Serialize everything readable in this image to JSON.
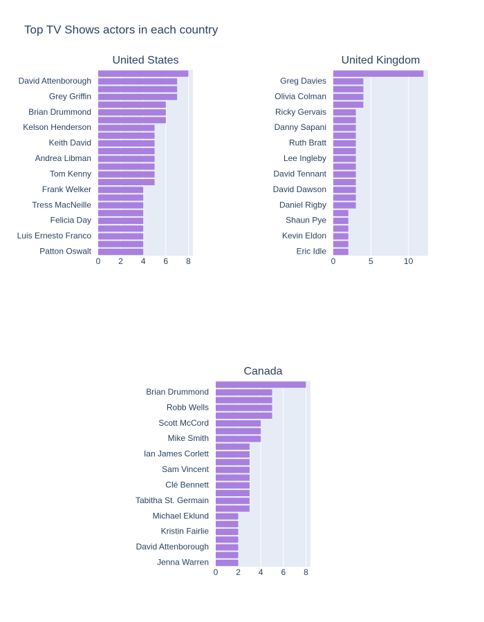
{
  "title": "Top TV Shows actors in each country",
  "chart_data": [
    {
      "type": "bar",
      "orientation": "h",
      "title": "United States",
      "color": "#a97fdf",
      "categories": [
        null,
        "David Attenborough",
        null,
        "Grey Griffin",
        null,
        "Brian Drummond",
        null,
        "Kelson Henderson",
        null,
        "Keith David",
        null,
        "Andrea Libman",
        null,
        "Tom Kenny",
        null,
        "Frank Welker",
        null,
        "Tress MacNeille",
        null,
        "Felicia Day",
        null,
        "Luis Ernesto Franco",
        null,
        "Patton Oswalt"
      ],
      "values": [
        8,
        7,
        7,
        7,
        6,
        6,
        6,
        5,
        5,
        5,
        5,
        5,
        5,
        5,
        5,
        4,
        4,
        4,
        4,
        4,
        4,
        4,
        4,
        4
      ],
      "xlim": [
        0,
        8.4
      ],
      "xticks": [
        0,
        2,
        4,
        6,
        8
      ],
      "grid": true
    },
    {
      "type": "bar",
      "orientation": "h",
      "title": "United Kingdom",
      "color": "#a97fdf",
      "categories": [
        null,
        "Greg Davies",
        null,
        "Olivia Colman",
        null,
        "Ricky Gervais",
        null,
        "Danny Sapani",
        null,
        "Ruth Bratt",
        null,
        "Lee Ingleby",
        null,
        "David Tennant",
        null,
        "David Dawson",
        null,
        "Daniel Rigby",
        null,
        "Shaun Pye",
        null,
        "Kevin Eldon",
        null,
        "Eric Idle"
      ],
      "values": [
        12,
        4,
        4,
        4,
        4,
        3,
        3,
        3,
        3,
        3,
        3,
        3,
        3,
        3,
        3,
        3,
        3,
        3,
        2,
        2,
        2,
        2,
        2,
        2
      ],
      "xlim": [
        0,
        12.6
      ],
      "xticks": [
        0,
        5,
        10
      ],
      "grid": true
    },
    {
      "type": "bar",
      "orientation": "h",
      "title": "Canada",
      "color": "#a97fdf",
      "categories": [
        null,
        "Brian Drummond",
        null,
        "Robb Wells",
        null,
        "Scott McCord",
        null,
        "Mike Smith",
        null,
        "Ian James Corlett",
        null,
        "Sam Vincent",
        null,
        "Clé Bennett",
        null,
        "Tabitha St. Germain",
        null,
        "Michael Eklund",
        null,
        "Kristin Fairlie",
        null,
        "David Attenborough",
        null,
        "Jenna Warren"
      ],
      "values": [
        8,
        5,
        5,
        5,
        5,
        4,
        4,
        4,
        3,
        3,
        3,
        3,
        3,
        3,
        3,
        3,
        3,
        2,
        2,
        2,
        2,
        2,
        2,
        2
      ],
      "xlim": [
        0,
        8.4
      ],
      "xticks": [
        0,
        2,
        4,
        6,
        8
      ],
      "grid": true
    }
  ]
}
